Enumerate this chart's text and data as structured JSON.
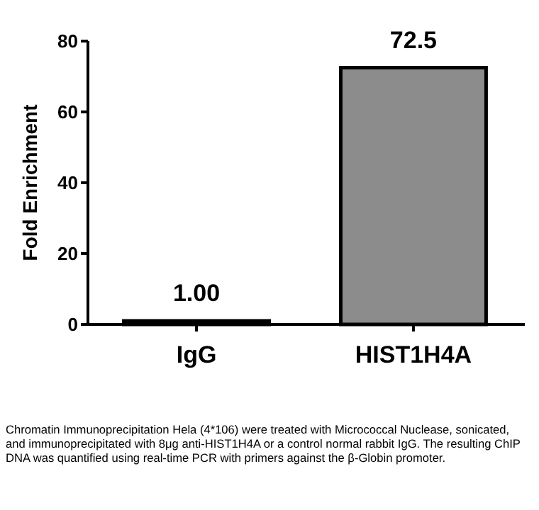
{
  "chart_data": {
    "type": "bar",
    "ylabel": "Fold Enrichment",
    "categories": [
      "IgG",
      "HIST1H4A"
    ],
    "values": [
      1.0,
      72.5
    ],
    "colors": [
      "#000000",
      "#8c8c8c"
    ],
    "value_labels": [
      "1.00",
      "72.5"
    ],
    "ylim": [
      0,
      80
    ],
    "yticks": [
      0,
      20,
      40,
      60,
      80
    ],
    "grid": false,
    "annotations": [
      "Chromatin Immunoprecipitation Hela (4*106) were treated with Micrococcal Nuclease, sonicated, and immunoprecipitated with 8μg anti-HIST1H4A or a control normal rabbit IgG. The resulting ChIP DNA was quantified using real-time PCR with primers against the β-Globin promoter."
    ]
  }
}
